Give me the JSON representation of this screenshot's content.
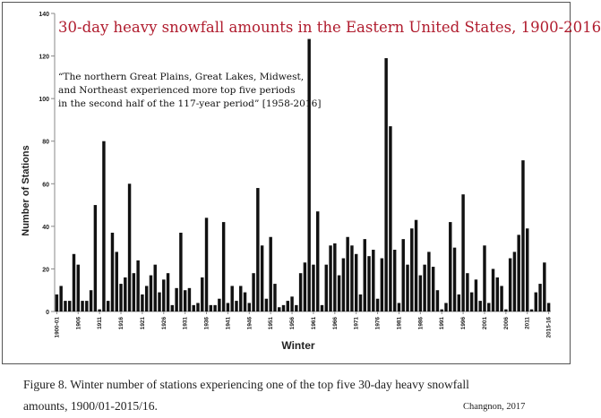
{
  "chart_data": {
    "type": "bar",
    "title": "30-day heavy snowfall amounts in the Eastern United States, 1900-2016",
    "annotation": "“The northern Great Plains, Great Lakes, Midwest,\nand Northeast  experienced more top five periods\nin the second half of the 117-year period” [1958-2016]",
    "xlabel": "Winter",
    "ylabel": "Number of Stations",
    "ylim": [
      0,
      140
    ],
    "yticks": [
      0,
      20,
      40,
      60,
      80,
      100,
      120,
      140
    ],
    "xtick_labels": [
      "1900-01",
      "1906",
      "1911",
      "1916",
      "1921",
      "1926",
      "1931",
      "1936",
      "1941",
      "1946",
      "1951",
      "1956",
      "1961",
      "1966",
      "1971",
      "1976",
      "1981",
      "1986",
      "1991",
      "1996",
      "2001",
      "2006",
      "2011",
      "2015-16"
    ],
    "start_year": 1900,
    "bar_color": "#111111",
    "grid": false,
    "values": [
      8,
      12,
      5,
      5,
      27,
      22,
      5,
      5,
      10,
      50,
      1,
      80,
      5,
      37,
      28,
      13,
      16,
      60,
      18,
      24,
      8,
      12,
      17,
      22,
      9,
      15,
      18,
      3,
      11,
      37,
      10,
      11,
      3,
      4,
      16,
      44,
      3,
      3,
      6,
      42,
      4,
      12,
      5,
      12,
      9,
      4,
      18,
      58,
      31,
      6,
      35,
      13,
      2,
      3,
      5,
      7,
      3,
      18,
      23,
      128,
      22,
      47,
      3,
      22,
      31,
      32,
      17,
      25,
      35,
      31,
      27,
      8,
      34,
      26,
      29,
      6,
      25,
      119,
      87,
      29,
      4,
      34,
      22,
      39,
      43,
      17,
      22,
      28,
      21,
      10,
      1,
      4,
      42,
      30,
      8,
      55,
      18,
      9,
      15,
      5,
      31,
      4,
      20,
      16,
      12,
      1,
      25,
      28,
      36,
      71,
      39,
      1,
      9,
      13,
      23,
      4
    ]
  },
  "caption_line1": "Figure 8. Winter number of stations experiencing one of the top five 30-day heavy snowfall",
  "caption_line2": "amounts, 1900/01-2015/16.",
  "credit": "Changnon, 2017"
}
